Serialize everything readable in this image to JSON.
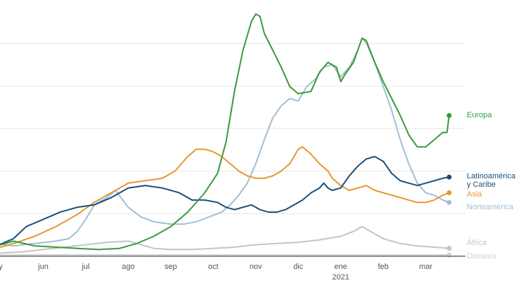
{
  "chart_data": {
    "type": "line",
    "title": "",
    "xlabel": "",
    "ylabel": "",
    "ylim": [
      0,
      100
    ],
    "grid": true,
    "x_ticks": [
      {
        "label": "y",
        "x": 0
      },
      {
        "label": "jun",
        "x": 1
      },
      {
        "label": "jul",
        "x": 2
      },
      {
        "label": "ago",
        "x": 3
      },
      {
        "label": "sep",
        "x": 4
      },
      {
        "label": "oct",
        "x": 5
      },
      {
        "label": "nov",
        "x": 6
      },
      {
        "label": "dic",
        "x": 7
      },
      {
        "label": "ene",
        "x": 8
      },
      {
        "label": "feb",
        "x": 9
      },
      {
        "label": "mar",
        "x": 10
      }
    ],
    "year_label": {
      "label": "2021",
      "x": 8
    },
    "series": [
      {
        "name": "Europa",
        "label_lines": [
          "Europa"
        ],
        "color": "#3a9a3a",
        "points": [
          [
            -0.1,
            4
          ],
          [
            0.3,
            6
          ],
          [
            0.8,
            4
          ],
          [
            1.3,
            3.5
          ],
          [
            1.8,
            3
          ],
          [
            2.3,
            2.5
          ],
          [
            2.8,
            3
          ],
          [
            3.2,
            5
          ],
          [
            3.6,
            8
          ],
          [
            4,
            12
          ],
          [
            4.4,
            18
          ],
          [
            4.8,
            26
          ],
          [
            5.1,
            34
          ],
          [
            5.3,
            47
          ],
          [
            5.5,
            68
          ],
          [
            5.7,
            85
          ],
          [
            5.9,
            97
          ],
          [
            6.0,
            100
          ],
          [
            6.1,
            99
          ],
          [
            6.2,
            92
          ],
          [
            6.4,
            85
          ],
          [
            6.6,
            78
          ],
          [
            6.8,
            70
          ],
          [
            7.0,
            67
          ],
          [
            7.3,
            68
          ],
          [
            7.5,
            76
          ],
          [
            7.7,
            80
          ],
          [
            7.9,
            78
          ],
          [
            8.0,
            72
          ],
          [
            8.1,
            75
          ],
          [
            8.3,
            80
          ],
          [
            8.5,
            90
          ],
          [
            8.6,
            89
          ],
          [
            8.8,
            80
          ],
          [
            9.0,
            72
          ],
          [
            9.2,
            65
          ],
          [
            9.4,
            58
          ],
          [
            9.6,
            50
          ],
          [
            9.8,
            45
          ],
          [
            10.0,
            45
          ],
          [
            10.2,
            48
          ],
          [
            10.4,
            51
          ],
          [
            10.5,
            51
          ],
          [
            10.55,
            58
          ]
        ],
        "end_value": 58
      },
      {
        "name": "Latinoamérica y Caribe",
        "label_lines": [
          "Latinoamérica",
          "y Caribe"
        ],
        "color": "#1a4f7a",
        "points": [
          [
            -0.1,
            4
          ],
          [
            0.3,
            7
          ],
          [
            0.6,
            12
          ],
          [
            1.0,
            15
          ],
          [
            1.4,
            18
          ],
          [
            1.8,
            20
          ],
          [
            2.2,
            21
          ],
          [
            2.6,
            24
          ],
          [
            3.0,
            28
          ],
          [
            3.4,
            29
          ],
          [
            3.8,
            28
          ],
          [
            4.2,
            26
          ],
          [
            4.5,
            23
          ],
          [
            4.8,
            23
          ],
          [
            5.1,
            22
          ],
          [
            5.3,
            20
          ],
          [
            5.5,
            19
          ],
          [
            5.7,
            20
          ],
          [
            5.9,
            21
          ],
          [
            6.1,
            19
          ],
          [
            6.3,
            18
          ],
          [
            6.5,
            18
          ],
          [
            6.7,
            19
          ],
          [
            6.9,
            21
          ],
          [
            7.1,
            23
          ],
          [
            7.3,
            26
          ],
          [
            7.5,
            28
          ],
          [
            7.6,
            30
          ],
          [
            7.7,
            28
          ],
          [
            7.8,
            27
          ],
          [
            8.0,
            28
          ],
          [
            8.2,
            33
          ],
          [
            8.4,
            37
          ],
          [
            8.6,
            40
          ],
          [
            8.8,
            41
          ],
          [
            9.0,
            39
          ],
          [
            9.2,
            34
          ],
          [
            9.4,
            31
          ],
          [
            9.6,
            30
          ],
          [
            9.8,
            29
          ],
          [
            10.0,
            30
          ],
          [
            10.2,
            31
          ],
          [
            10.4,
            32
          ],
          [
            10.55,
            32.5
          ]
        ],
        "end_value": 32.5
      },
      {
        "name": "Asia",
        "label_lines": [
          "Asia"
        ],
        "color": "#e8962e",
        "points": [
          [
            -0.1,
            3
          ],
          [
            0.3,
            5
          ],
          [
            0.8,
            8
          ],
          [
            1.3,
            12
          ],
          [
            1.8,
            17
          ],
          [
            2.2,
            22
          ],
          [
            2.6,
            26
          ],
          [
            3.0,
            30
          ],
          [
            3.4,
            31
          ],
          [
            3.8,
            32
          ],
          [
            4.1,
            35
          ],
          [
            4.4,
            41
          ],
          [
            4.6,
            44
          ],
          [
            4.8,
            44
          ],
          [
            5.0,
            43
          ],
          [
            5.2,
            41
          ],
          [
            5.4,
            38
          ],
          [
            5.6,
            35
          ],
          [
            5.8,
            33
          ],
          [
            6.0,
            32
          ],
          [
            6.2,
            32
          ],
          [
            6.4,
            33
          ],
          [
            6.6,
            35
          ],
          [
            6.8,
            38
          ],
          [
            7.0,
            44
          ],
          [
            7.1,
            45
          ],
          [
            7.3,
            42
          ],
          [
            7.5,
            38
          ],
          [
            7.7,
            35
          ],
          [
            7.8,
            32
          ],
          [
            8.0,
            29
          ],
          [
            8.2,
            27
          ],
          [
            8.4,
            28
          ],
          [
            8.6,
            29
          ],
          [
            8.8,
            27
          ],
          [
            9.0,
            26
          ],
          [
            9.2,
            25
          ],
          [
            9.4,
            24
          ],
          [
            9.6,
            23
          ],
          [
            9.8,
            22
          ],
          [
            10.0,
            22
          ],
          [
            10.2,
            23
          ],
          [
            10.4,
            25
          ],
          [
            10.55,
            26
          ]
        ],
        "end_value": 26
      },
      {
        "name": "Norteamérica",
        "label_lines": [
          "Norteamérica"
        ],
        "color": "#9fbfd4",
        "points": [
          [
            -0.1,
            5
          ],
          [
            0.3,
            4
          ],
          [
            0.8,
            5
          ],
          [
            1.3,
            6
          ],
          [
            1.6,
            7
          ],
          [
            1.8,
            10
          ],
          [
            2.0,
            15
          ],
          [
            2.2,
            21
          ],
          [
            2.5,
            24
          ],
          [
            2.7,
            27
          ],
          [
            3.0,
            20
          ],
          [
            3.3,
            16
          ],
          [
            3.6,
            14
          ],
          [
            4.0,
            13
          ],
          [
            4.3,
            13
          ],
          [
            4.6,
            14
          ],
          [
            4.9,
            16
          ],
          [
            5.2,
            18
          ],
          [
            5.4,
            21
          ],
          [
            5.6,
            25
          ],
          [
            5.8,
            30
          ],
          [
            6.0,
            38
          ],
          [
            6.2,
            48
          ],
          [
            6.4,
            57
          ],
          [
            6.6,
            62
          ],
          [
            6.8,
            65
          ],
          [
            7.0,
            64
          ],
          [
            7.2,
            70
          ],
          [
            7.4,
            73
          ],
          [
            7.6,
            78
          ],
          [
            7.8,
            79
          ],
          [
            8.0,
            74
          ],
          [
            8.2,
            78
          ],
          [
            8.4,
            85
          ],
          [
            8.5,
            90
          ],
          [
            8.6,
            88
          ],
          [
            8.8,
            80
          ],
          [
            9.0,
            70
          ],
          [
            9.2,
            60
          ],
          [
            9.4,
            48
          ],
          [
            9.6,
            38
          ],
          [
            9.8,
            30
          ],
          [
            10.0,
            26
          ],
          [
            10.2,
            25
          ],
          [
            10.4,
            23
          ],
          [
            10.55,
            22
          ]
        ],
        "end_value": 22
      },
      {
        "name": "África",
        "label_lines": [
          "África"
        ],
        "color": "#c4c4c4",
        "points": [
          [
            -0.1,
            1
          ],
          [
            0.5,
            1.5
          ],
          [
            1.0,
            2.5
          ],
          [
            1.5,
            3.5
          ],
          [
            2.0,
            4.5
          ],
          [
            2.5,
            5.5
          ],
          [
            3.0,
            6
          ],
          [
            3.3,
            4.5
          ],
          [
            3.6,
            3
          ],
          [
            4.0,
            2.5
          ],
          [
            4.5,
            2.5
          ],
          [
            5.0,
            3
          ],
          [
            5.5,
            3.5
          ],
          [
            6.0,
            4.5
          ],
          [
            6.5,
            5
          ],
          [
            7.0,
            5.5
          ],
          [
            7.5,
            6.5
          ],
          [
            8.0,
            8
          ],
          [
            8.3,
            10
          ],
          [
            8.5,
            12
          ],
          [
            8.7,
            10
          ],
          [
            9.0,
            7
          ],
          [
            9.4,
            5
          ],
          [
            9.8,
            4
          ],
          [
            10.2,
            3.5
          ],
          [
            10.55,
            3
          ]
        ],
        "end_value": 3
      },
      {
        "name": "Oceanía",
        "label_lines": [
          "Oceanía"
        ],
        "color": "#d0d0d0",
        "points": [
          [
            -0.1,
            0.2
          ],
          [
            2.0,
            0.3
          ],
          [
            4.0,
            0.2
          ],
          [
            6.0,
            0.2
          ],
          [
            8.0,
            0.2
          ],
          [
            10.55,
            0.2
          ]
        ],
        "end_value": 0.2
      }
    ]
  }
}
